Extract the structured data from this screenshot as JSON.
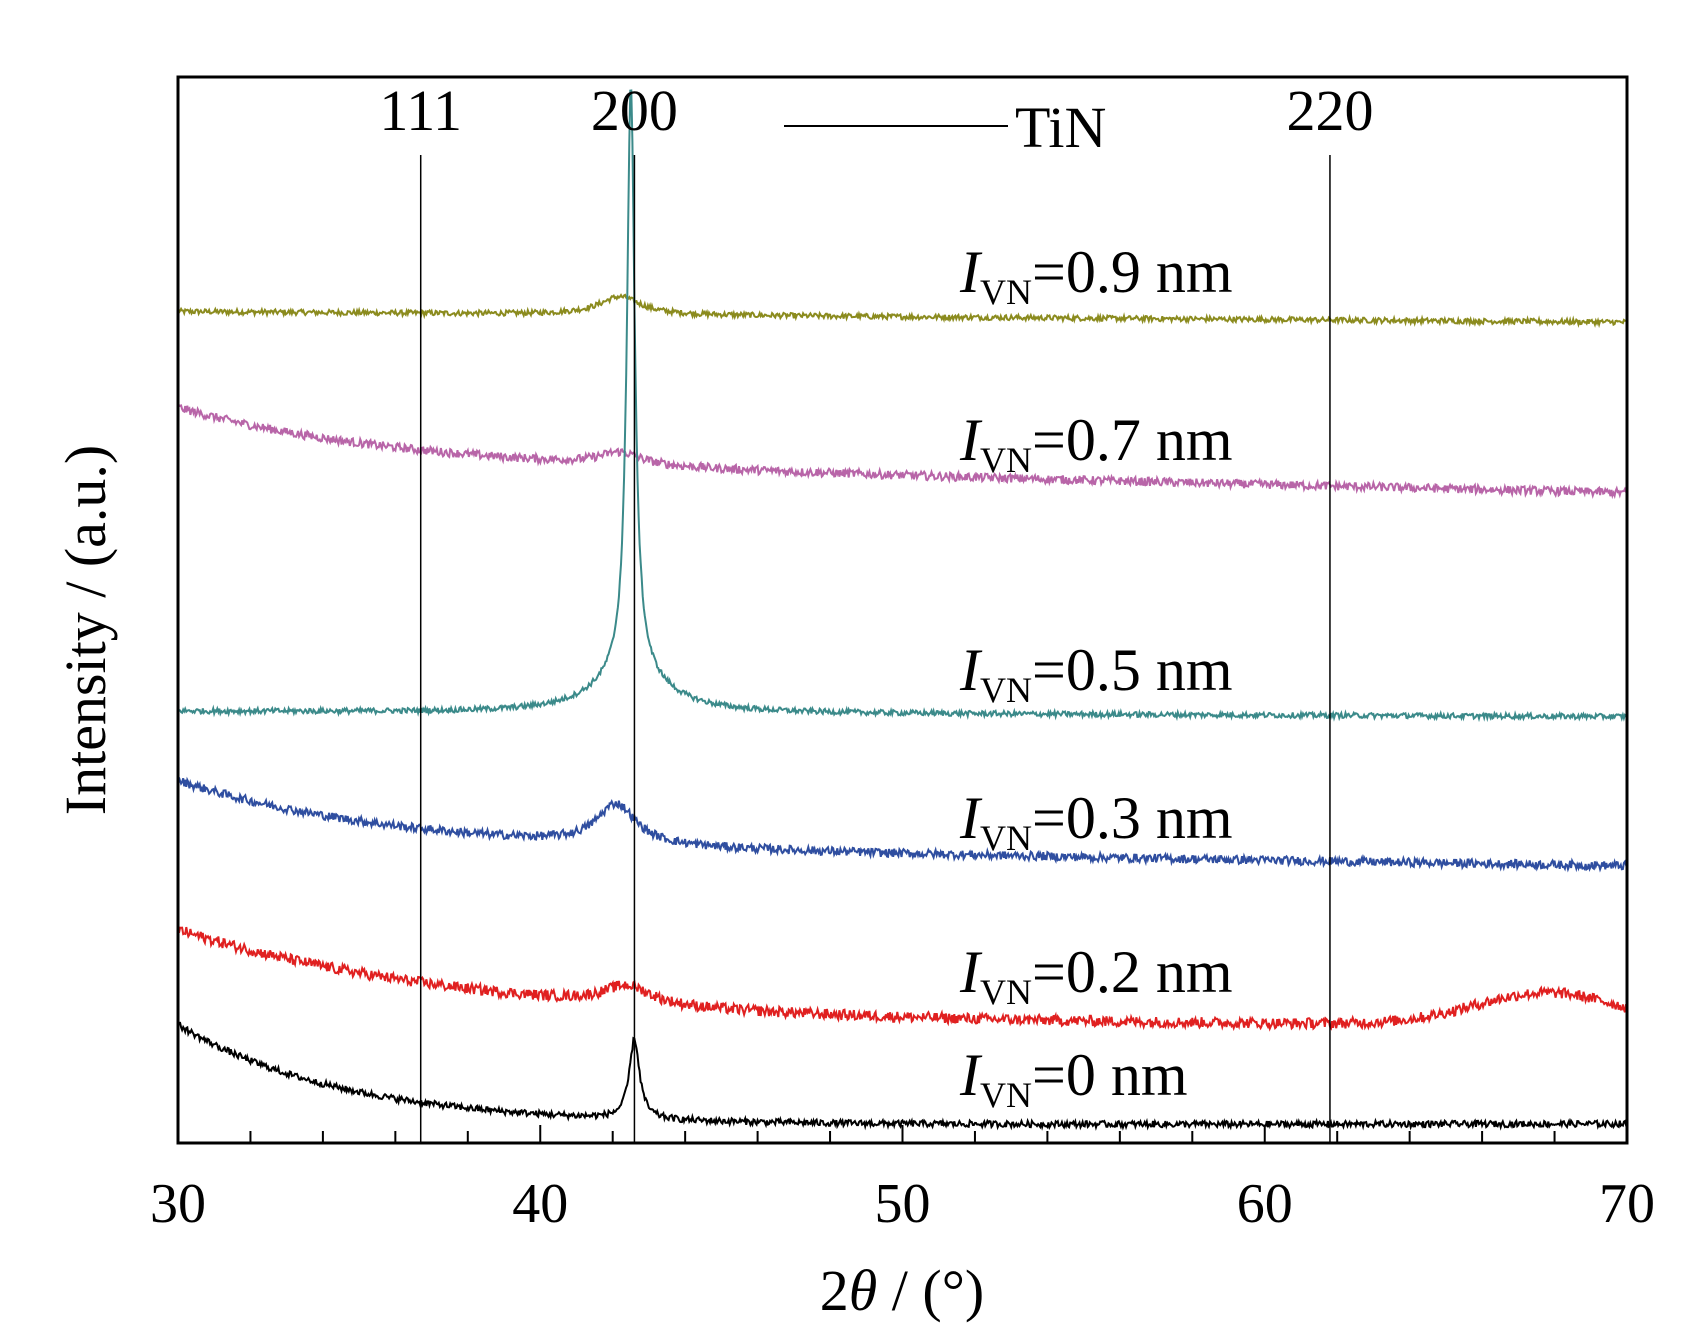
{
  "chart_data": {
    "type": "line",
    "xlabel_parts": [
      "2",
      "θ",
      " / (°)"
    ],
    "ylabel": "Intensity / (a.u.)",
    "xlim": [
      30,
      70
    ],
    "x_ticks": [
      "30",
      "40",
      "50",
      "60",
      "70"
    ],
    "x_minor_step": 2,
    "y_axis_ticks": false,
    "legend": {
      "label": "TiN",
      "placement": "top-center",
      "color": "#000000"
    },
    "reference_lines": [
      {
        "label": "111",
        "x": 36.7
      },
      {
        "label": "200",
        "x": 42.6
      },
      {
        "label": "220",
        "x": 61.8
      }
    ],
    "series": [
      {
        "name_main": "I",
        "name_sub": "VN",
        "name_rest": "=0.9 nm",
        "color": "#8b8b1e",
        "baseline_start": 0.78,
        "baseline_end": 0.77,
        "decay": 0.0,
        "decay_rate": 0.1,
        "peak_x": 42.2,
        "peak_height": 0.017,
        "peak_width": 0.7,
        "sharp_height": 0,
        "sharp_width": 0.15,
        "hump_x": 0,
        "hump_height": 0,
        "hump_width": 1,
        "noise": 0.0025
      },
      {
        "name_main": "I",
        "name_sub": "VN",
        "name_rest": "=0.7 nm",
        "color": "#b865a8",
        "baseline_start": 0.64,
        "baseline_end": 0.61,
        "decay": 0.05,
        "decay_rate": 0.18,
        "peak_x": 42.2,
        "peak_height": 0.012,
        "peak_width": 0.7,
        "sharp_height": 0,
        "sharp_width": 0.15,
        "hump_x": 0,
        "hump_height": 0,
        "hump_width": 1,
        "noise": 0.004
      },
      {
        "name_main": "I",
        "name_sub": "VN",
        "name_rest": "=0.5 nm",
        "color": "#3b8a8a",
        "baseline_start": 0.405,
        "baseline_end": 0.4,
        "decay": 0.0,
        "decay_rate": 0.1,
        "peak_x": 42.5,
        "peak_height": 0.04,
        "peak_width": 1.1,
        "sharp_height": 0.55,
        "sharp_width": 0.13,
        "hump_x": 0,
        "hump_height": 0,
        "hump_width": 1,
        "noise": 0.0025
      },
      {
        "name_main": "I",
        "name_sub": "VN",
        "name_rest": "=0.3 nm",
        "color": "#2f4ea0",
        "baseline_start": 0.28,
        "baseline_end": 0.26,
        "decay": 0.06,
        "decay_rate": 0.18,
        "peak_x": 42.1,
        "peak_height": 0.038,
        "peak_width": 0.65,
        "sharp_height": 0,
        "sharp_width": 0.15,
        "hump_x": 0,
        "hump_height": 0,
        "hump_width": 1,
        "noise": 0.004
      },
      {
        "name_main": "I",
        "name_sub": "VN",
        "name_rest": "=0.2 nm",
        "color": "#e02020",
        "baseline_start": 0.11,
        "baseline_end": 0.11,
        "decay": 0.09,
        "decay_rate": 0.12,
        "peak_x": 42.4,
        "peak_height": 0.018,
        "peak_width": 0.8,
        "sharp_height": 0,
        "sharp_width": 0.15,
        "hump_x": 67.8,
        "hump_height": 0.03,
        "hump_width": 2.8,
        "noise": 0.005
      },
      {
        "name_main": "I",
        "name_sub": "VN",
        "name_rest": "=0 nm",
        "color": "#000000",
        "baseline_start": 0.016,
        "baseline_end": 0.018,
        "decay": 0.095,
        "decay_rate": 0.22,
        "peak_x": 42.6,
        "peak_height": 0,
        "peak_width": 0.5,
        "sharp_height": 0.075,
        "sharp_width": 0.17,
        "hump_x": 0,
        "hump_height": 0,
        "hump_width": 1,
        "noise": 0.003
      }
    ]
  }
}
